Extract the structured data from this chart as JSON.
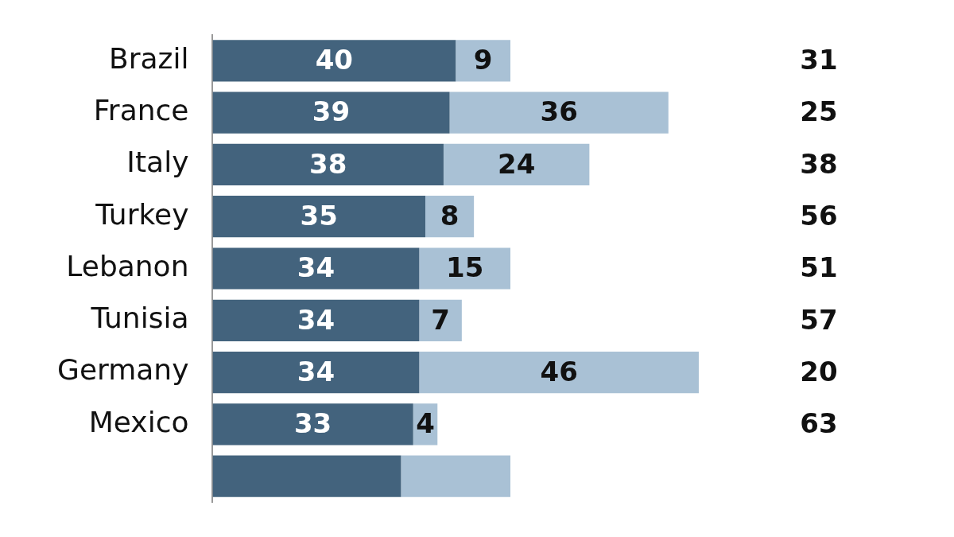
{
  "chart_data": {
    "type": "bar",
    "orientation": "horizontal",
    "stacked": true,
    "categories": [
      "Brazil",
      "France",
      "Italy",
      "Turkey",
      "Lebanon",
      "Tunisia",
      "Germany",
      "Mexico",
      null
    ],
    "series": [
      {
        "color": "#43637d",
        "values": [
          40,
          39,
          38,
          35,
          34,
          34,
          34,
          33,
          31
        ],
        "value_labels": [
          "40",
          "39",
          "38",
          "35",
          "34",
          "34",
          "34",
          "33",
          null
        ]
      },
      {
        "color": "#a9c1d5",
        "values": [
          9,
          36,
          24,
          8,
          15,
          7,
          46,
          4,
          18
        ],
        "value_labels": [
          "9",
          "36",
          "24",
          "8",
          "15",
          "7",
          "46",
          "4",
          null
        ]
      }
    ],
    "xlim": [
      0,
      122
    ],
    "tick_labels": "y",
    "legend": false,
    "annotations": [
      "31",
      "25",
      "38",
      "56",
      "51",
      "57",
      "20",
      "63"
    ]
  }
}
